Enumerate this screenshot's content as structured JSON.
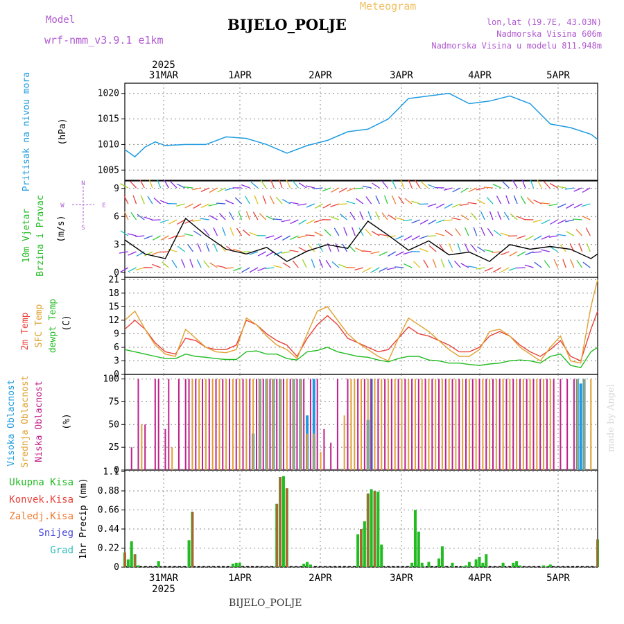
{
  "header": {
    "title": "BIJELO_POLJE",
    "subtitle": "Meteogram",
    "model_label": "Model",
    "model_name": "wrf-nmm_v3.9.1 e1km",
    "coords": "lon,lat (19.7E, 43.03N)",
    "elevation": "Nadmorska Visina 606m",
    "model_elevation": "Nadmorska Visina u modelu 811.948m"
  },
  "footer": {
    "station": "BIJELO_POLJE",
    "credit": "made by Angel"
  },
  "time_axis": {
    "year": "2025",
    "labels": [
      "31MAR",
      "1APR",
      "2APR",
      "3APR",
      "4APR",
      "5APR"
    ]
  },
  "colors": {
    "pressure": "#1e9be0",
    "wind_speed": "#000000",
    "t2m": "#e8413a",
    "sfc": "#e0a030",
    "dewpoint": "#22bb22",
    "cloud_high": "#1e9be0",
    "cloud_mid": "#e0a030",
    "cloud_low": "#c0208a",
    "rain_total": "#22bb22",
    "rain_conv": "#e8413a",
    "freezing": "#f07a30",
    "snow": "#4444dd",
    "hail": "#33bbbb",
    "header_purple": "#b05ad0",
    "header_orange": "#f0c060"
  },
  "chart_data": [
    {
      "type": "line",
      "panel": "pressure",
      "ylabel_lines": [
        "Pritisak na nivou mora",
        "(hPa)"
      ],
      "yticks": [
        1005,
        1010,
        1015,
        1020
      ],
      "ylim": [
        1003,
        1022
      ],
      "x_hours": [
        0,
        3,
        6,
        9,
        12,
        18,
        24,
        30,
        36,
        42,
        48,
        54,
        60,
        66,
        72,
        78,
        84,
        90,
        96,
        102,
        108,
        114,
        120,
        126,
        132,
        138,
        140
      ],
      "values": [
        1009,
        1007.6,
        1009.5,
        1010.5,
        1009.8,
        1010,
        1010,
        1011.5,
        1011.2,
        1010,
        1008.3,
        1009.8,
        1010.8,
        1012.5,
        1013,
        1015,
        1019,
        1019.5,
        1020,
        1018,
        1018.5,
        1019.5,
        1018,
        1014,
        1013.3,
        1012,
        1011
      ]
    },
    {
      "type": "line",
      "panel": "wind",
      "ylabel_lines": [
        "10m Vjetar",
        "Brzina i Pravac",
        "(m/s)"
      ],
      "compass": [
        "N",
        "E",
        "S",
        "W"
      ],
      "yticks": [
        0,
        3,
        6,
        9
      ],
      "ylim": [
        -0.5,
        9.8
      ],
      "x_hours": [
        0,
        6,
        12,
        18,
        24,
        30,
        36,
        42,
        48,
        54,
        60,
        66,
        72,
        78,
        84,
        90,
        96,
        102,
        108,
        114,
        120,
        126,
        132,
        138,
        140
      ],
      "speed": [
        3.5,
        2,
        1.5,
        5.8,
        4,
        2.5,
        2,
        2.7,
        1.2,
        2.3,
        3,
        2.6,
        5.5,
        4,
        2.4,
        3.4,
        1.9,
        2.2,
        1.2,
        3,
        2.5,
        2.8,
        2.5,
        1.5,
        2
      ]
    },
    {
      "type": "line",
      "panel": "temperature",
      "ylabel_lines": [
        "2m Temp",
        "SFC Temp",
        "dewpt Temp",
        "(C)"
      ],
      "yticks": [
        0,
        3,
        6,
        9,
        12,
        15,
        18,
        21
      ],
      "ylim": [
        0,
        21.5
      ],
      "x_hours": [
        0,
        3,
        6,
        9,
        12,
        15,
        18,
        21,
        24,
        27,
        30,
        33,
        36,
        39,
        42,
        45,
        48,
        51,
        54,
        57,
        60,
        63,
        66,
        69,
        72,
        75,
        78,
        81,
        84,
        87,
        90,
        93,
        96,
        99,
        102,
        105,
        108,
        111,
        114,
        117,
        120,
        123,
        126,
        129,
        132,
        135,
        138,
        140
      ],
      "series": [
        {
          "name": "2m Temp",
          "values": [
            10,
            12,
            10,
            7,
            5,
            4.5,
            8,
            7.5,
            6,
            5.5,
            5.5,
            6.5,
            12,
            11,
            9,
            7.5,
            6.5,
            4,
            8,
            11,
            13,
            11,
            8,
            7,
            6,
            5,
            5.5,
            8,
            10.5,
            9,
            8.5,
            7.5,
            6.5,
            5,
            5,
            6,
            8.5,
            9.5,
            8.5,
            6.5,
            5,
            4,
            5.5,
            7.5,
            4,
            3,
            10,
            14
          ]
        },
        {
          "name": "SFC Temp",
          "values": [
            12,
            14,
            10,
            6.5,
            4.5,
            4,
            10,
            8,
            6,
            5,
            4.8,
            5.5,
            12.5,
            11,
            8.5,
            6.5,
            5.5,
            3.5,
            9,
            14,
            15,
            12,
            9,
            7,
            5.5,
            4,
            3,
            8,
            12.5,
            11,
            9.5,
            7.5,
            5.5,
            4,
            4,
            5.5,
            9.5,
            10,
            8.5,
            6,
            4.5,
            3,
            6,
            8.5,
            3,
            2.5,
            15,
            21
          ]
        },
        {
          "name": "dewpt Temp",
          "values": [
            5.5,
            5,
            4.5,
            4,
            3.5,
            3.5,
            4.5,
            4,
            3.8,
            3.5,
            3.3,
            3.3,
            5,
            5.2,
            4.5,
            4.5,
            3.5,
            3.2,
            5,
            5.3,
            6,
            5,
            4.5,
            4,
            3.8,
            3.2,
            2.8,
            3.5,
            4,
            4,
            3.2,
            3,
            2.5,
            2.5,
            2.2,
            2,
            2.3,
            2.5,
            3,
            3.2,
            3,
            2.5,
            4,
            4.5,
            2,
            1.5,
            5,
            6
          ]
        }
      ]
    },
    {
      "type": "bar",
      "panel": "clouds",
      "ylabel_lines": [
        "Visoka Oblacnost",
        "Srednja Oblacnost",
        "Niska Oblacnost",
        "(%)"
      ],
      "yticks": [
        0,
        25,
        50,
        75,
        100
      ],
      "ylim": [
        0,
        105
      ],
      "series": [
        {
          "name": "Visoka Oblacnost",
          "x_hours": [
            38,
            40,
            42,
            44,
            46,
            50,
            52,
            54,
            56,
            72,
            73,
            134,
            135,
            136
          ],
          "values": [
            40,
            100,
            100,
            100,
            100,
            100,
            100,
            60,
            100,
            55,
            100,
            100,
            95,
            100
          ]
        },
        {
          "name": "Srednja Oblacnost",
          "x_hours": [
            5,
            14,
            20,
            22,
            24,
            26,
            28,
            30,
            32,
            34,
            36,
            38,
            40,
            42,
            44,
            46,
            48,
            50,
            52,
            54,
            56,
            58,
            65,
            67,
            68,
            70,
            72,
            74,
            76,
            78,
            80,
            82,
            84,
            86,
            88,
            90,
            92,
            94,
            96,
            98,
            100,
            102,
            104,
            106,
            108,
            110,
            112,
            114,
            116,
            118,
            120,
            122,
            124,
            126,
            134,
            136,
            138
          ],
          "values": [
            50,
            25,
            100,
            100,
            100,
            100,
            100,
            100,
            100,
            100,
            100,
            100,
            100,
            100,
            100,
            100,
            100,
            100,
            100,
            40,
            40,
            20,
            60,
            100,
            100,
            100,
            100,
            100,
            100,
            100,
            100,
            100,
            100,
            100,
            100,
            100,
            100,
            100,
            100,
            100,
            100,
            100,
            100,
            100,
            100,
            100,
            100,
            100,
            100,
            100,
            100,
            100,
            100,
            100,
            100,
            100,
            100
          ]
        },
        {
          "name": "Niska Oblacnost",
          "x_hours": [
            2,
            4,
            6,
            9,
            10,
            12,
            13,
            16,
            18,
            19,
            21,
            23,
            25,
            27,
            29,
            31,
            33,
            35,
            37,
            39,
            41,
            43,
            45,
            47,
            49,
            51,
            53,
            55,
            57,
            59,
            61,
            63,
            66,
            69,
            71,
            73,
            75,
            77,
            79,
            81,
            83,
            85,
            87,
            89,
            91,
            93,
            95,
            97,
            99,
            101,
            103,
            105,
            107,
            109,
            111,
            113,
            115,
            117,
            119,
            121,
            123,
            125,
            127,
            129,
            131,
            133
          ],
          "values": [
            25,
            100,
            50,
            100,
            100,
            45,
            100,
            100,
            100,
            100,
            100,
            100,
            100,
            100,
            100,
            100,
            100,
            100,
            100,
            100,
            100,
            100,
            100,
            100,
            100,
            100,
            100,
            100,
            100,
            45,
            30,
            100,
            100,
            100,
            100,
            100,
            100,
            100,
            100,
            100,
            100,
            100,
            100,
            100,
            100,
            100,
            100,
            100,
            100,
            100,
            100,
            100,
            100,
            100,
            100,
            100,
            100,
            100,
            100,
            100,
            100,
            100,
            100,
            100,
            100,
            100
          ]
        }
      ]
    },
    {
      "type": "bar",
      "panel": "precipitation",
      "ylabel_lines": [
        "1hr Precip (mm)"
      ],
      "legend": [
        "Ukupna Kisa",
        "Konvek.Kisa",
        "Zaledj.Kisa",
        "Snijeg",
        "Grad"
      ],
      "yticks": [
        0,
        0.22,
        0.44,
        0.66,
        0.88,
        1.1
      ],
      "ylim": [
        0,
        1.12
      ],
      "x_hours": [
        0,
        1,
        2,
        3,
        4,
        10,
        19,
        20,
        32,
        33,
        34,
        45,
        46,
        47,
        48,
        53,
        54,
        55,
        69,
        70,
        71,
        72,
        73,
        74,
        75,
        76,
        85,
        86,
        87,
        88,
        90,
        93,
        94,
        97,
        100,
        101,
        102,
        104,
        105,
        106,
        107,
        112,
        115,
        116,
        117,
        124,
        125,
        126,
        140
      ],
      "total": [
        0.17,
        0.09,
        0.3,
        0.15,
        0.02,
        0.07,
        0.31,
        0.64,
        0.04,
        0.05,
        0.05,
        0.73,
        1.04,
        1.05,
        0.91,
        0.04,
        0.06,
        0.03,
        0.38,
        0.44,
        0.53,
        0.85,
        0.9,
        0.88,
        0.87,
        0.26,
        0.05,
        0.66,
        0.41,
        0.05,
        0.06,
        0.1,
        0.24,
        0.05,
        0.01,
        0.02,
        0.06,
        0.09,
        0.12,
        0.05,
        0.15,
        0.05,
        0.05,
        0.07,
        0.02,
        0.02,
        0.01,
        0.03,
        0.32
      ],
      "convective": [
        0.17,
        0,
        0,
        0.15,
        0,
        0,
        0,
        0.64,
        0,
        0,
        0,
        0.73,
        1.04,
        0,
        0.91,
        0,
        0,
        0,
        0,
        0.44,
        0,
        0.85,
        0,
        0.88,
        0,
        0,
        0,
        0,
        0,
        0,
        0,
        0,
        0,
        0,
        0,
        0,
        0,
        0,
        0,
        0,
        0,
        0,
        0,
        0,
        0,
        0,
        0,
        0,
        0.32
      ]
    }
  ]
}
